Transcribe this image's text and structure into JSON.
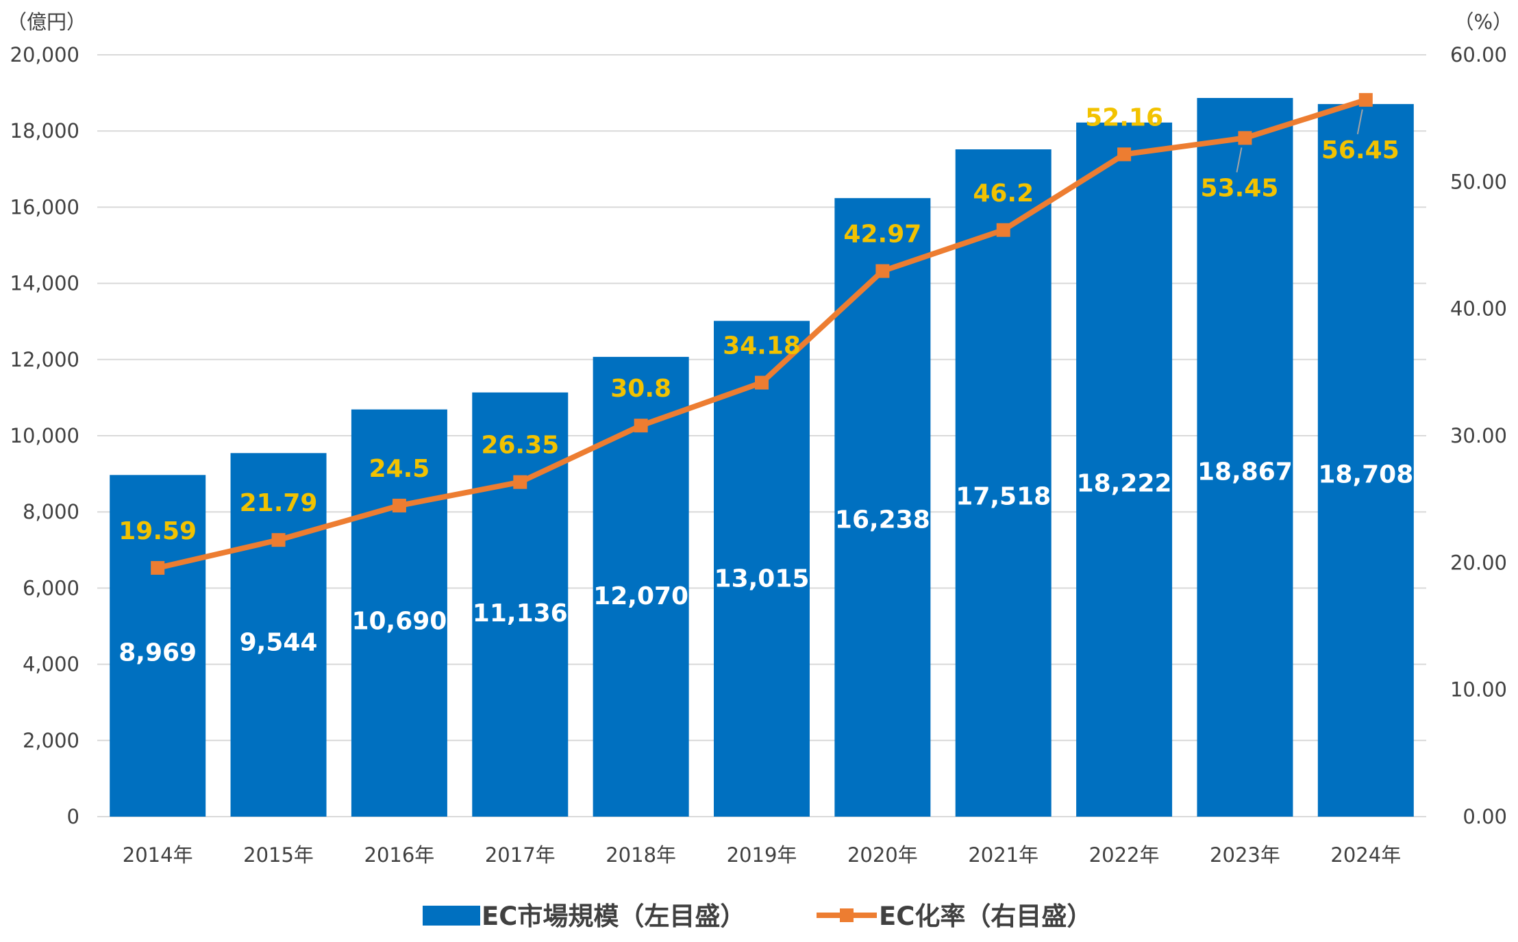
{
  "chart_data": {
    "type": "bar",
    "categories": [
      "2014年",
      "2015年",
      "2016年",
      "2017年",
      "2018年",
      "2019年",
      "2020年",
      "2021年",
      "2022年",
      "2023年",
      "2024年"
    ],
    "left_axis": {
      "unit_label": "（億円）",
      "ylim": [
        0,
        20000
      ],
      "ticks": [
        "0",
        "2,000",
        "4,000",
        "6,000",
        "8,000",
        "10,000",
        "12,000",
        "14,000",
        "16,000",
        "18,000",
        "20,000"
      ],
      "tick_values": [
        0,
        2000,
        4000,
        6000,
        8000,
        10000,
        12000,
        14000,
        16000,
        18000,
        20000
      ]
    },
    "right_axis": {
      "unit_label": "（%）",
      "ylim": [
        0,
        60
      ],
      "ticks": [
        "0.00",
        "10.00",
        "20.00",
        "30.00",
        "40.00",
        "50.00",
        "60.00"
      ],
      "tick_values": [
        0,
        10,
        20,
        30,
        40,
        50,
        60
      ]
    },
    "series": [
      {
        "name": "EC市場規模（左目盛）",
        "type": "bar",
        "axis": "left",
        "color": "#0070C0",
        "values": [
          8969,
          9544,
          10690,
          11136,
          12070,
          13015,
          16238,
          17518,
          18222,
          18867,
          18708
        ],
        "labels": [
          "8,969",
          "9,544",
          "10,690",
          "11,136",
          "12,070",
          "13,015",
          "16,238",
          "17,518",
          "18,222",
          "18,867",
          "18,708"
        ]
      },
      {
        "name": "EC化率（右目盛）",
        "type": "line",
        "axis": "right",
        "color": "#ED7D31",
        "label_color": "#F2C200",
        "marker": "square",
        "values": [
          19.59,
          21.79,
          24.5,
          26.35,
          30.8,
          34.18,
          42.97,
          46.2,
          52.16,
          53.45,
          56.45
        ],
        "labels": [
          "19.59",
          "21.79",
          "24.5",
          "26.35",
          "30.8",
          "34.18",
          "42.97",
          "46.2",
          "52.16",
          "53.45",
          "56.45"
        ]
      }
    ],
    "grid": true,
    "legend_position": "bottom"
  }
}
